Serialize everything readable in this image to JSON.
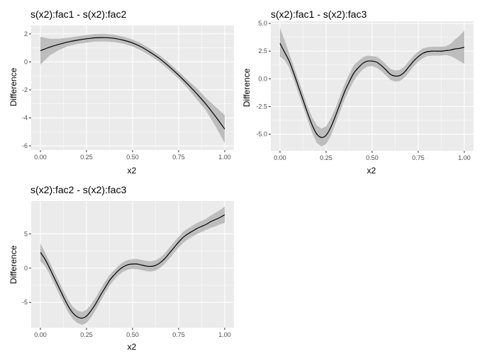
{
  "colors": {
    "panel_background": "#EBEBEB",
    "grid_major": "#FFFFFF",
    "ribbon": "#BDBDBD",
    "line": "#000000",
    "tick_text": "#4D4D4D"
  },
  "chart_data": [
    {
      "type": "line",
      "title": "s(x2):fac1 - s(x2):fac2",
      "xlabel": "x2",
      "ylabel": "Difference",
      "xlim": [
        -0.05,
        1.05
      ],
      "ylim": [
        -6.3,
        2.6
      ],
      "xticks": [
        0,
        0.25,
        0.5,
        0.75,
        1
      ],
      "xtick_labels": [
        "0.00",
        "0.25",
        "0.50",
        "0.75",
        "1.00"
      ],
      "yticks": [
        -6,
        -4,
        -2,
        0,
        2
      ],
      "ytick_labels": [
        "-6",
        "-4",
        "-2",
        "0",
        "2"
      ],
      "grid": true,
      "x": [
        0,
        0.05,
        0.1,
        0.15,
        0.2,
        0.25,
        0.3,
        0.35,
        0.4,
        0.45,
        0.5,
        0.55,
        0.6,
        0.65,
        0.7,
        0.75,
        0.8,
        0.85,
        0.9,
        0.95,
        1
      ],
      "y": [
        0.8,
        1.05,
        1.25,
        1.42,
        1.55,
        1.65,
        1.72,
        1.73,
        1.68,
        1.55,
        1.35,
        1.05,
        0.65,
        0.2,
        -0.35,
        -0.95,
        -1.6,
        -2.3,
        -3.05,
        -3.9,
        -4.8
      ],
      "lower": [
        -0.2,
        0.45,
        0.85,
        1.12,
        1.28,
        1.38,
        1.45,
        1.46,
        1.42,
        1.3,
        1.1,
        0.8,
        0.4,
        -0.05,
        -0.6,
        -1.2,
        -1.9,
        -2.7,
        -3.5,
        -4.6,
        -5.8
      ],
      "upper": [
        1.8,
        1.65,
        1.65,
        1.72,
        1.82,
        1.92,
        1.99,
        2.0,
        1.94,
        1.8,
        1.6,
        1.3,
        0.9,
        0.45,
        -0.1,
        -0.7,
        -1.3,
        -1.9,
        -2.6,
        -3.2,
        -3.8
      ]
    },
    {
      "type": "line",
      "title": "s(x2):fac1 - s(x2):fac3",
      "xlabel": "x2",
      "ylabel": "Difference",
      "xlim": [
        -0.05,
        1.05
      ],
      "ylim": [
        -6.5,
        5.2
      ],
      "xticks": [
        0,
        0.25,
        0.5,
        0.75,
        1
      ],
      "xtick_labels": [
        "0.00",
        "0.25",
        "0.50",
        "0.75",
        "1.00"
      ],
      "yticks": [
        -5,
        -2.5,
        0,
        2.5,
        5
      ],
      "ytick_labels": [
        "-5.0",
        "-2.5",
        "0.0",
        "2.5",
        "5.0"
      ],
      "grid": true,
      "x": [
        0,
        0.025,
        0.05,
        0.075,
        0.1,
        0.125,
        0.15,
        0.175,
        0.2,
        0.225,
        0.25,
        0.275,
        0.3,
        0.325,
        0.35,
        0.375,
        0.4,
        0.425,
        0.45,
        0.475,
        0.5,
        0.525,
        0.55,
        0.575,
        0.6,
        0.625,
        0.65,
        0.675,
        0.7,
        0.725,
        0.75,
        0.775,
        0.8,
        0.825,
        0.85,
        0.875,
        0.9,
        0.925,
        0.95,
        0.975,
        1
      ],
      "y": [
        3.2,
        2.4,
        1.6,
        0.5,
        -0.7,
        -1.9,
        -3.1,
        -4.2,
        -5.0,
        -5.3,
        -5.1,
        -4.4,
        -3.4,
        -2.3,
        -1.2,
        -0.3,
        0.5,
        1.0,
        1.4,
        1.6,
        1.6,
        1.5,
        1.2,
        0.8,
        0.4,
        0.25,
        0.3,
        0.6,
        1.1,
        1.6,
        2.0,
        2.3,
        2.45,
        2.5,
        2.5,
        2.5,
        2.55,
        2.6,
        2.7,
        2.75,
        2.85
      ],
      "lower": [
        2.0,
        1.7,
        1.0,
        -0.1,
        -1.3,
        -2.5,
        -3.7,
        -4.9,
        -5.8,
        -6.1,
        -5.9,
        -5.2,
        -4.1,
        -3.0,
        -1.9,
        -1.0,
        -0.2,
        0.4,
        0.85,
        1.1,
        1.15,
        1.0,
        0.7,
        0.3,
        -0.1,
        -0.25,
        -0.2,
        0.1,
        0.6,
        1.1,
        1.55,
        1.85,
        2.05,
        2.1,
        2.1,
        2.1,
        2.15,
        2.05,
        1.85,
        1.6,
        1.35
      ],
      "upper": [
        4.6,
        3.5,
        2.3,
        1.1,
        -0.1,
        -1.3,
        -2.5,
        -3.5,
        -4.2,
        -4.5,
        -4.3,
        -3.6,
        -2.7,
        -1.6,
        -0.5,
        0.4,
        1.2,
        1.6,
        1.95,
        2.1,
        2.05,
        2.0,
        1.7,
        1.3,
        0.9,
        0.75,
        0.8,
        1.1,
        1.6,
        2.1,
        2.45,
        2.75,
        2.85,
        2.9,
        2.9,
        2.9,
        2.95,
        3.15,
        3.55,
        3.9,
        4.35
      ]
    },
    {
      "type": "line",
      "title": "s(x2):fac2 - s(x2):fac3",
      "xlabel": "x2",
      "ylabel": "Difference",
      "xlim": [
        -0.05,
        1.05
      ],
      "ylim": [
        -8.7,
        9.8
      ],
      "xticks": [
        0,
        0.25,
        0.5,
        0.75,
        1
      ],
      "xtick_labels": [
        "0.00",
        "0.25",
        "0.50",
        "0.75",
        "1.00"
      ],
      "yticks": [
        -5,
        0,
        5
      ],
      "ytick_labels": [
        "-5",
        "0",
        "5"
      ],
      "grid": true,
      "x": [
        0,
        0.025,
        0.05,
        0.075,
        0.1,
        0.125,
        0.15,
        0.175,
        0.2,
        0.225,
        0.25,
        0.275,
        0.3,
        0.325,
        0.35,
        0.375,
        0.4,
        0.425,
        0.45,
        0.475,
        0.5,
        0.525,
        0.55,
        0.575,
        0.6,
        0.625,
        0.65,
        0.675,
        0.7,
        0.725,
        0.75,
        0.775,
        0.8,
        0.825,
        0.85,
        0.875,
        0.9,
        0.925,
        0.95,
        0.975,
        1
      ],
      "y": [
        2.3,
        1.3,
        0.0,
        -1.4,
        -2.8,
        -4.2,
        -5.5,
        -6.5,
        -7.1,
        -7.3,
        -7.0,
        -6.2,
        -5.2,
        -4.0,
        -2.9,
        -1.8,
        -1.0,
        -0.3,
        0.2,
        0.5,
        0.6,
        0.6,
        0.45,
        0.3,
        0.25,
        0.4,
        0.8,
        1.4,
        2.2,
        3.0,
        3.8,
        4.5,
        5.0,
        5.4,
        5.8,
        6.1,
        6.4,
        6.8,
        7.1,
        7.4,
        7.8
      ],
      "lower": [
        1.0,
        0.3,
        -0.9,
        -2.3,
        -3.7,
        -5.1,
        -6.4,
        -7.4,
        -8.0,
        -8.3,
        -8.0,
        -7.2,
        -6.1,
        -4.9,
        -3.7,
        -2.6,
        -1.7,
        -1.0,
        -0.5,
        -0.2,
        -0.1,
        -0.15,
        -0.3,
        -0.45,
        -0.5,
        -0.35,
        0.05,
        0.65,
        1.4,
        2.2,
        3.0,
        3.7,
        4.2,
        4.6,
        5.0,
        5.3,
        5.6,
        5.9,
        6.1,
        6.4,
        6.6
      ],
      "upper": [
        3.6,
        2.3,
        0.9,
        -0.5,
        -1.9,
        -3.3,
        -4.6,
        -5.6,
        -6.2,
        -6.4,
        -6.1,
        -5.3,
        -4.3,
        -3.1,
        -2.0,
        -1.0,
        -0.3,
        0.4,
        0.9,
        1.2,
        1.3,
        1.35,
        1.2,
        1.05,
        1.0,
        1.15,
        1.55,
        2.15,
        3.0,
        3.8,
        4.6,
        5.3,
        5.8,
        6.2,
        6.6,
        6.9,
        7.2,
        7.7,
        8.1,
        8.5,
        9.0
      ]
    }
  ]
}
